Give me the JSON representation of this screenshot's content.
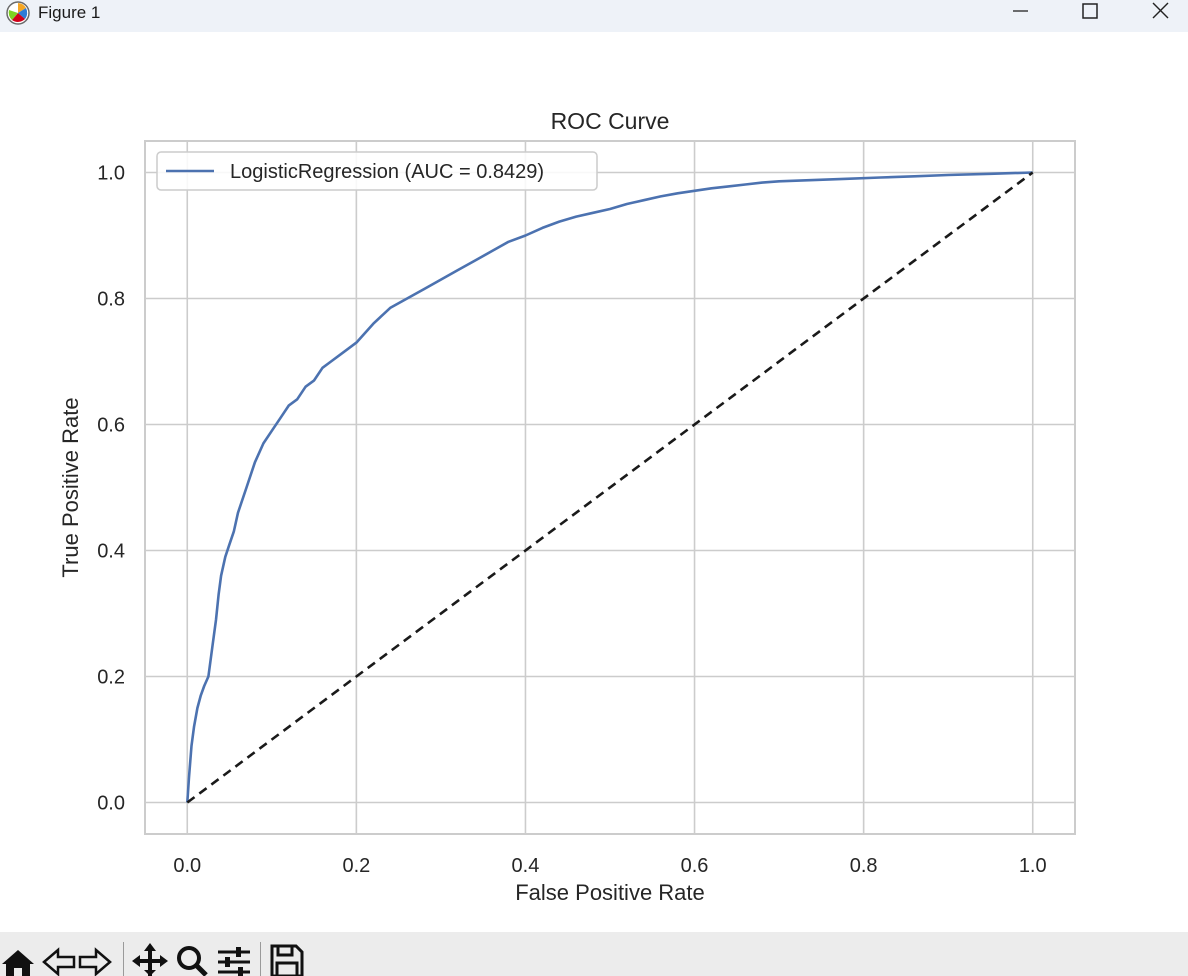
{
  "window": {
    "title": "Figure 1",
    "icon": "matplotlib-logo-icon",
    "controls": [
      "minimize-icon",
      "maximize-icon",
      "close-icon"
    ]
  },
  "chart_data": {
    "type": "line",
    "title": "ROC Curve",
    "xlabel": "False Positive Rate",
    "ylabel": "True Positive Rate",
    "xlim": [
      -0.05,
      1.05
    ],
    "ylim": [
      -0.05,
      1.05
    ],
    "xticks": [
      "0.0",
      "0.2",
      "0.4",
      "0.6",
      "0.8",
      "1.0"
    ],
    "yticks": [
      "0.0",
      "0.2",
      "0.4",
      "0.6",
      "0.8",
      "1.0"
    ],
    "grid": true,
    "legend_position": "upper-left",
    "series": [
      {
        "name": "LogisticRegression (AUC = 0.8429)",
        "color": "#4c72b0",
        "x": [
          0.0,
          0.002,
          0.005,
          0.008,
          0.012,
          0.016,
          0.02,
          0.025,
          0.03,
          0.034,
          0.037,
          0.04,
          0.045,
          0.05,
          0.055,
          0.06,
          0.07,
          0.08,
          0.09,
          0.1,
          0.11,
          0.12,
          0.13,
          0.14,
          0.15,
          0.16,
          0.17,
          0.18,
          0.19,
          0.2,
          0.22,
          0.24,
          0.26,
          0.28,
          0.3,
          0.32,
          0.34,
          0.36,
          0.38,
          0.4,
          0.42,
          0.44,
          0.46,
          0.48,
          0.5,
          0.52,
          0.54,
          0.56,
          0.58,
          0.6,
          0.62,
          0.64,
          0.66,
          0.68,
          0.7,
          0.74,
          0.78,
          0.82,
          0.86,
          0.9,
          0.95,
          1.0
        ],
        "y": [
          0.0,
          0.04,
          0.09,
          0.12,
          0.15,
          0.17,
          0.185,
          0.2,
          0.25,
          0.29,
          0.33,
          0.36,
          0.39,
          0.41,
          0.43,
          0.46,
          0.5,
          0.54,
          0.57,
          0.59,
          0.61,
          0.63,
          0.64,
          0.66,
          0.67,
          0.69,
          0.7,
          0.71,
          0.72,
          0.73,
          0.76,
          0.785,
          0.8,
          0.815,
          0.83,
          0.845,
          0.86,
          0.875,
          0.89,
          0.9,
          0.912,
          0.922,
          0.93,
          0.936,
          0.942,
          0.95,
          0.956,
          0.962,
          0.967,
          0.971,
          0.975,
          0.978,
          0.981,
          0.984,
          0.986,
          0.988,
          0.99,
          0.992,
          0.994,
          0.996,
          0.998,
          1.0
        ]
      },
      {
        "name": "",
        "color": "#1a1a1a",
        "dashed": true,
        "x": [
          0.0,
          1.0
        ],
        "y": [
          0.0,
          1.0
        ]
      }
    ]
  },
  "toolbar": {
    "tools": [
      "home-icon",
      "back-icon",
      "forward-icon",
      "pan-icon",
      "zoom-icon",
      "configure-subplots-icon",
      "save-icon"
    ]
  }
}
